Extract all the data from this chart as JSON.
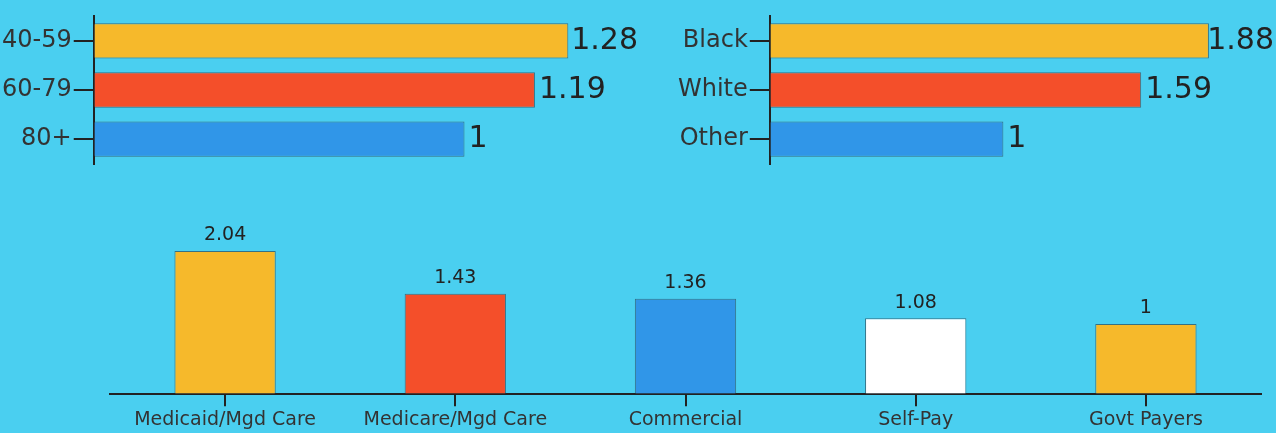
{
  "chart_data": [
    {
      "type": "bar",
      "orientation": "horizontal",
      "categories": [
        "40-59",
        "60-79",
        "80+"
      ],
      "values": [
        1.28,
        1.19,
        1
      ],
      "colors": [
        "#f6b92b",
        "#f44f2a",
        "#3096e8"
      ],
      "data_labels": true
    },
    {
      "type": "bar",
      "orientation": "horizontal",
      "categories": [
        "Black",
        "White",
        "Other"
      ],
      "values": [
        1.88,
        1.59,
        1
      ],
      "colors": [
        "#f6b92b",
        "#f44f2a",
        "#3096e8"
      ],
      "data_labels": true
    },
    {
      "type": "bar",
      "categories": [
        "Medicaid/Mgd Care",
        "Medicare/Mgd Care",
        "Commercial",
        "Self-Pay",
        "Govt Payers"
      ],
      "values": [
        2.04,
        1.43,
        1.36,
        1.08,
        1
      ],
      "colors": [
        "#f6b92b",
        "#f44f2a",
        "#3096e8",
        "#ffffff",
        "#f6b92b"
      ],
      "data_labels": true
    }
  ]
}
